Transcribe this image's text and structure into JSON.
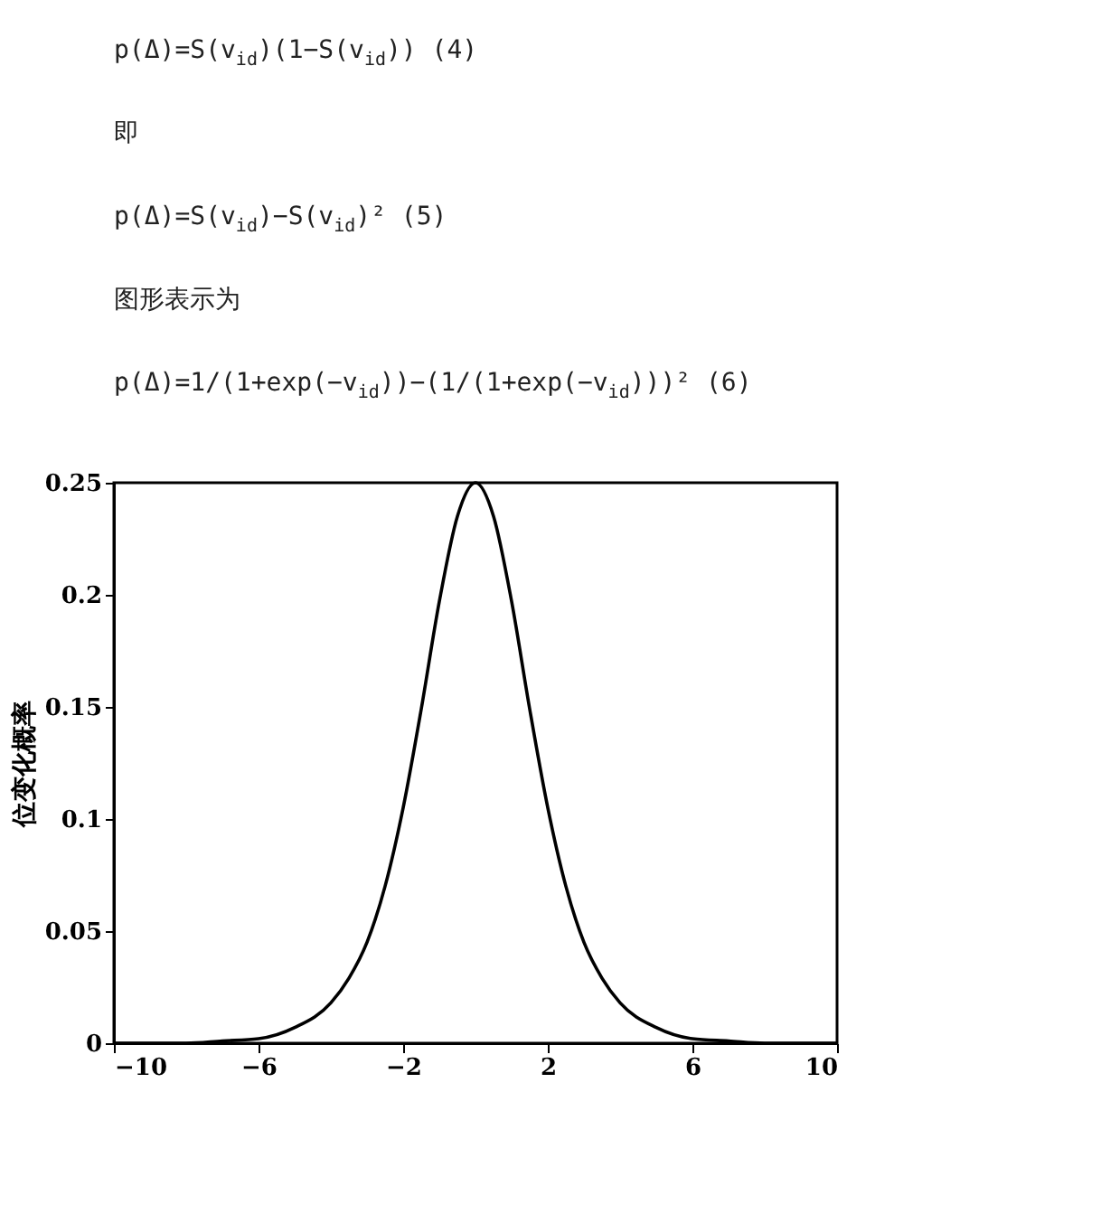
{
  "chart_data": {
    "type": "line",
    "annotations": [
      "p(Δ)=S(v$_{id}$)(1−S(v$_{id}$))    (4)",
      "即",
      "p(Δ)=S(v$_{id}$)−S(v$_{id}$)²    (5)",
      "图形表示为",
      "p(Δ)=1/(1+exp(−v$_{id}$))−(1/(1+exp(−v$_{id}$)))²    (6)"
    ],
    "ylabel": "位变化概率",
    "x": [
      -10,
      -9,
      -8,
      -7,
      -6,
      -5,
      -4,
      -3.5,
      -3,
      -2.5,
      -2,
      -1.5,
      -1,
      -0.5,
      0,
      0.5,
      1,
      1.5,
      2,
      2.5,
      3,
      3.5,
      4,
      5,
      6,
      7,
      8,
      9,
      10
    ],
    "series": [
      {
        "color": "#000000",
        "values": [
          0.0,
          0.0,
          0.0,
          0.001,
          0.002,
          0.007,
          0.018,
          0.029,
          0.045,
          0.07,
          0.105,
          0.149,
          0.197,
          0.235,
          0.25,
          0.235,
          0.197,
          0.149,
          0.105,
          0.07,
          0.045,
          0.029,
          0.018,
          0.007,
          0.002,
          0.001,
          0.0,
          0.0,
          0.0
        ]
      }
    ],
    "xlim": [
      -10,
      10
    ],
    "xticks": [
      -10,
      -6,
      -2,
      2,
      6,
      10
    ],
    "ylim": [
      0,
      0.25
    ],
    "yticks": [
      0,
      0.05,
      0.1,
      0.15,
      0.2,
      0.25
    ],
    "grid": false,
    "marker": "none",
    "line_style": "solid"
  }
}
